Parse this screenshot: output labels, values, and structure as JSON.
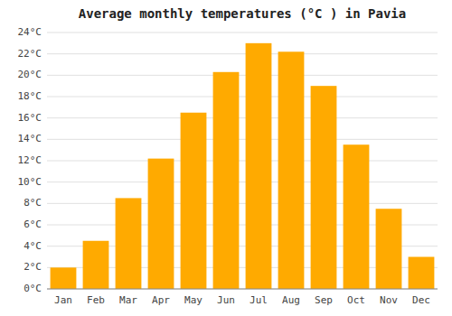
{
  "chart_data": {
    "type": "bar",
    "title": "Average monthly temperatures (°C ) in Pavia",
    "categories": [
      "Jan",
      "Feb",
      "Mar",
      "Apr",
      "May",
      "Jun",
      "Jul",
      "Aug",
      "Sep",
      "Oct",
      "Nov",
      "Dec"
    ],
    "values": [
      2.0,
      4.5,
      8.5,
      12.2,
      16.5,
      20.3,
      23.0,
      22.2,
      19.0,
      13.5,
      7.5,
      3.0
    ],
    "color": "#FFAA00",
    "ylim": [
      0,
      24
    ],
    "yticks": [
      {
        "value": 0,
        "label": "0°C"
      },
      {
        "value": 2,
        "label": "2°C"
      },
      {
        "value": 4,
        "label": "4°C"
      },
      {
        "value": 6,
        "label": "6°C"
      },
      {
        "value": 8,
        "label": "8°C"
      },
      {
        "value": 10,
        "label": "10°C"
      },
      {
        "value": 12,
        "label": "12°C"
      },
      {
        "value": 14,
        "label": "14°C"
      },
      {
        "value": 16,
        "label": "16°C"
      },
      {
        "value": 18,
        "label": "18°C"
      },
      {
        "value": 20,
        "label": "20°C"
      },
      {
        "value": 22,
        "label": "22°C"
      },
      {
        "value": 24,
        "label": "24°C"
      }
    ],
    "grid": true
  }
}
